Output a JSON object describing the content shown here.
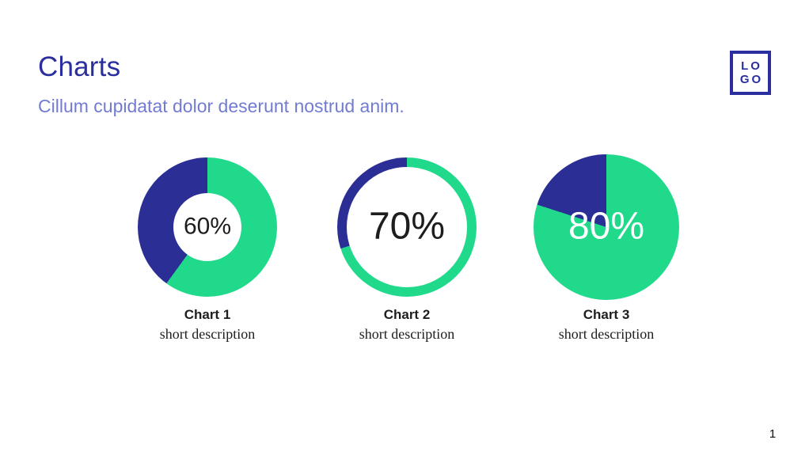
{
  "slide": {
    "title": "Charts",
    "subtitle": "Cillum cupidatat dolor deserunt nostrud anim.",
    "page_number": "1"
  },
  "logo": {
    "line1": "LO",
    "line2": "GO"
  },
  "colors": {
    "green": "#20d98b",
    "indigo": "#2b2e95",
    "title_text": "#2a2e9e",
    "subtitle_text": "#727bd2",
    "body_text": "#1e1e1e"
  },
  "chart_data": {
    "type": "pie",
    "legend_position": "none",
    "charts": [
      {
        "title": "Chart 1",
        "description": "short description",
        "style": "donut",
        "center_label": "60%",
        "slices": [
          {
            "label": "filled",
            "value": 60,
            "color": "#20d98b"
          },
          {
            "label": "remainder",
            "value": 40,
            "color": "#2b2e95"
          }
        ]
      },
      {
        "title": "Chart 2",
        "description": "short description",
        "style": "ring",
        "center_label": "70%",
        "slices": [
          {
            "label": "filled",
            "value": 70,
            "color": "#20d98b"
          },
          {
            "label": "remainder",
            "value": 30,
            "color": "#2b2e95"
          }
        ]
      },
      {
        "title": "Chart 3",
        "description": "short description",
        "style": "pie",
        "center_label": "80%",
        "slices": [
          {
            "label": "filled",
            "value": 80,
            "color": "#20d98b"
          },
          {
            "label": "remainder",
            "value": 20,
            "color": "#2b2e95"
          }
        ]
      }
    ]
  }
}
